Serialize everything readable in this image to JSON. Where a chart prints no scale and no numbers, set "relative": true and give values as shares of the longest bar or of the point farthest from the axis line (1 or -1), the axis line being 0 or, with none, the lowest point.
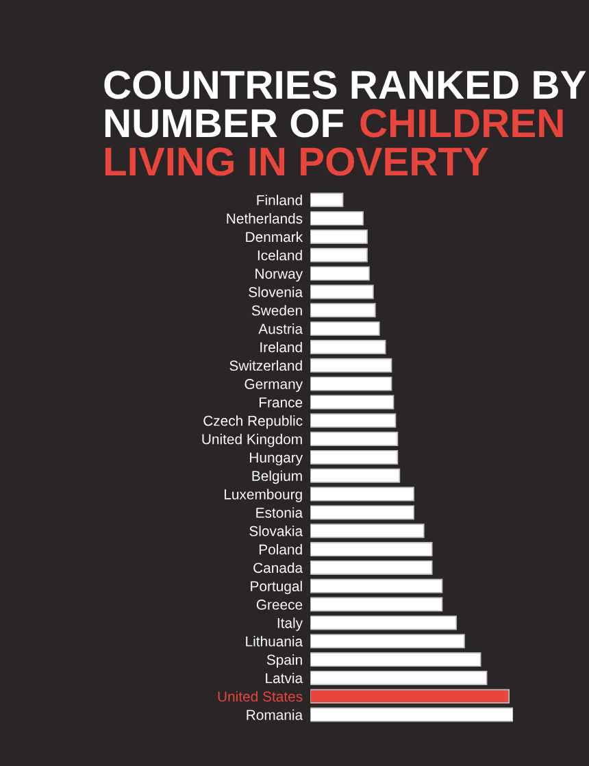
{
  "chart_data": {
    "type": "bar",
    "orientation": "horizontal",
    "relative": true,
    "title": "COUNTRIES RANKED BY NUMBER OF",
    "subtitle": "CHILDREN LIVING IN POVERTY",
    "categories": [
      "Finland",
      "Netherlands",
      "Denmark",
      "Iceland",
      "Norway",
      "Slovenia",
      "Sweden",
      "Austria",
      "Ireland",
      "Switzerland",
      "Germany",
      "France",
      "Czech Republic",
      "United Kingdom",
      "Hungary",
      "Belgium",
      "Luxembourg",
      "Estonia",
      "Slovakia",
      "Poland",
      "Canada",
      "Portugal",
      "Greece",
      "Italy",
      "Lithuania",
      "Spain",
      "Latvia",
      "United States",
      "Romania"
    ],
    "values": [
      0.16,
      0.26,
      0.28,
      0.28,
      0.29,
      0.31,
      0.32,
      0.34,
      0.37,
      0.4,
      0.4,
      0.41,
      0.42,
      0.43,
      0.43,
      0.44,
      0.51,
      0.51,
      0.56,
      0.6,
      0.6,
      0.65,
      0.65,
      0.72,
      0.76,
      0.84,
      0.87,
      0.98,
      1
    ],
    "colors": [
      "#ffffff",
      "#ffffff",
      "#ffffff",
      "#ffffff",
      "#ffffff",
      "#ffffff",
      "#ffffff",
      "#ffffff",
      "#ffffff",
      "#ffffff",
      "#ffffff",
      "#ffffff",
      "#ffffff",
      "#ffffff",
      "#ffffff",
      "#ffffff",
      "#ffffff",
      "#ffffff",
      "#ffffff",
      "#ffffff",
      "#ffffff",
      "#ffffff",
      "#ffffff",
      "#ffffff",
      "#ffffff",
      "#ffffff",
      "#ffffff",
      "#e8453c",
      "#ffffff"
    ],
    "grid": false,
    "legend": false
  }
}
